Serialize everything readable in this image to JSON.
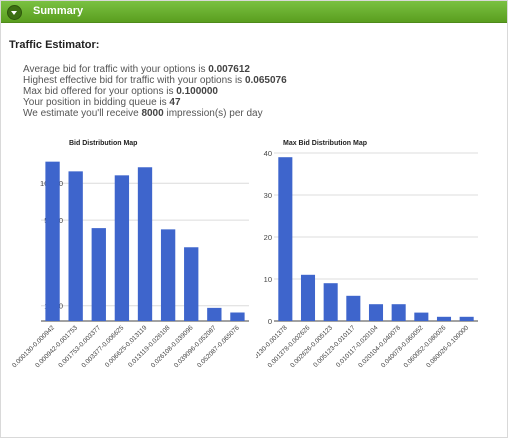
{
  "header": {
    "title": "Summary"
  },
  "section": {
    "title": "Traffic Estimator:"
  },
  "stats": [
    {
      "text": "Average bid for traffic with your options is ",
      "value": "0.007612",
      "suffix": ""
    },
    {
      "text": "Highest effective bid for traffic with your options is ",
      "value": "0.065076",
      "suffix": ""
    },
    {
      "text": "Max bid offered for your options is ",
      "value": "0.100000",
      "suffix": ""
    },
    {
      "text": "Your position in bidding queue is ",
      "value": "47",
      "suffix": ""
    },
    {
      "text": "We estimate you'll receive ",
      "value": "8000",
      "suffix": " impression(s) per day"
    }
  ],
  "colors": {
    "header_green": "#6aaf2d",
    "bar_blue": "#3e65cc"
  },
  "chart_data": [
    {
      "type": "bar",
      "title": "Bid Distribution Map",
      "scale": "log",
      "yticks": [
        1000,
        5000,
        10000
      ],
      "ytick_labels": [
        "1,000",
        "5,000",
        "10,000"
      ],
      "ylim": [
        750,
        17000
      ],
      "categories": [
        "0.000130-0.000942",
        "0.000942-0.001753",
        "0.001753-0.003377",
        "0.003377-0.006625",
        "0.006625-0.013119",
        "0.013119-0.026108",
        "0.026108-0.039096",
        "0.039096-0.052087",
        "0.052087-0.065076"
      ],
      "values": [
        15000,
        12500,
        4300,
        11600,
        13500,
        4200,
        3000,
        960,
        880
      ]
    },
    {
      "type": "bar",
      "title": "Max Bid Distribution Map",
      "scale": "linear",
      "yticks": [
        0,
        10,
        20,
        30,
        40
      ],
      "ytick_labels": [
        "0",
        "10",
        "20",
        "30",
        "40"
      ],
      "ylim": [
        0,
        40
      ],
      "categories": [
        ".000130-0.001378",
        "0.001378-0.002626",
        "0.002626-0.005123",
        "0.005123-0.010117",
        "0.010117-0.020104",
        "0.020104-0.040078",
        "0.040078-0.060052",
        "0.060052-0.080026",
        "0.080026-0.100000"
      ],
      "values": [
        39,
        11,
        9,
        6,
        4,
        4,
        2,
        1,
        1
      ]
    }
  ]
}
